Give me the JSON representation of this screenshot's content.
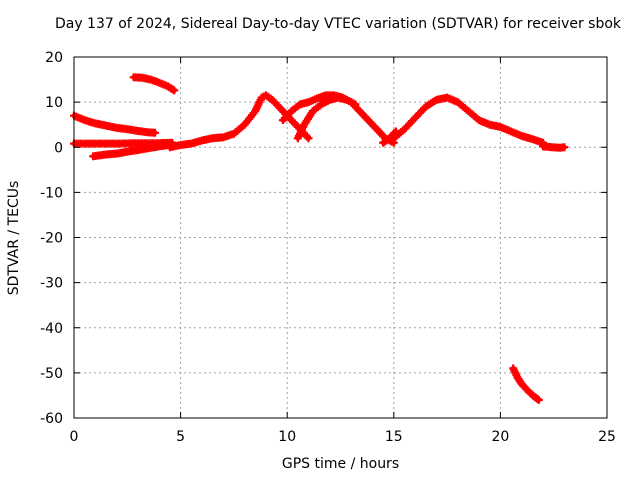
{
  "chart_data": {
    "type": "scatter",
    "title": "Day 137 of 2024, Sidereal Day-to-day VTEC variation (SDTVAR) for receiver sbok",
    "xlabel": "GPS time / hours",
    "ylabel": "SDTVAR / TECUs",
    "xlim": [
      0,
      25
    ],
    "ylim": [
      -60,
      20
    ],
    "xticks": [
      0,
      5,
      10,
      15,
      20,
      25
    ],
    "yticks": [
      -60,
      -50,
      -40,
      -30,
      -20,
      -10,
      0,
      10,
      20
    ],
    "grid": true,
    "marker": "+",
    "color": "#ff0000",
    "series": [
      {
        "name": "arc-1",
        "x": [
          0.0,
          0.5,
          1.0,
          1.5,
          2.0,
          2.5,
          3.0,
          3.5,
          3.8
        ],
        "y": [
          7.0,
          6.0,
          5.3,
          4.8,
          4.3,
          4.0,
          3.6,
          3.3,
          3.2
        ]
      },
      {
        "name": "arc-2",
        "x": [
          2.8,
          3.2,
          3.6,
          4.0,
          4.4,
          4.7
        ],
        "y": [
          15.5,
          15.4,
          15.0,
          14.3,
          13.5,
          12.6
        ]
      },
      {
        "name": "arc-3",
        "x": [
          0.0,
          1.0,
          2.0,
          3.0,
          4.0,
          4.6
        ],
        "y": [
          0.8,
          0.8,
          0.8,
          0.9,
          0.9,
          1.0
        ]
      },
      {
        "name": "arc-4",
        "x": [
          0.9,
          1.5,
          2.0,
          2.5,
          3.0,
          3.5,
          4.0,
          4.6
        ],
        "y": [
          -2.0,
          -1.6,
          -1.4,
          -1.0,
          -0.6,
          -0.2,
          0.2,
          0.6
        ]
      },
      {
        "name": "arc-5",
        "x": [
          4.5,
          5.0,
          5.5,
          6.0,
          6.5,
          7.0,
          7.5,
          8.0,
          8.5,
          8.8,
          9.0,
          9.3,
          9.6,
          10.0,
          10.5,
          11.0
        ],
        "y": [
          0.0,
          0.5,
          0.8,
          1.5,
          2.0,
          2.2,
          3.0,
          5.0,
          8.0,
          11.0,
          11.5,
          10.5,
          9.0,
          7.0,
          4.5,
          2.0
        ]
      },
      {
        "name": "arc-6",
        "x": [
          9.8,
          10.2,
          10.6,
          11.0,
          11.4,
          11.8,
          12.2,
          12.6,
          13.0,
          13.4,
          13.8,
          14.2,
          14.6,
          15.0
        ],
        "y": [
          6.0,
          8.0,
          9.5,
          10.0,
          10.8,
          11.5,
          11.5,
          11.0,
          10.0,
          8.0,
          6.0,
          4.0,
          2.0,
          1.0
        ]
      },
      {
        "name": "arc-7",
        "x": [
          10.5,
          10.8,
          11.2,
          11.6,
          12.0,
          12.4,
          12.8,
          13.2
        ],
        "y": [
          2.0,
          5.0,
          8.0,
          9.5,
          10.5,
          11.0,
          10.5,
          9.5
        ]
      },
      {
        "name": "arc-8",
        "x": [
          15.0,
          15.5,
          16.0,
          16.5,
          17.0,
          17.5,
          18.0,
          18.5,
          19.0,
          19.5,
          20.0,
          20.5,
          21.0,
          21.5,
          22.0
        ],
        "y": [
          2.0,
          4.0,
          6.5,
          9.0,
          10.5,
          11.0,
          10.0,
          8.0,
          6.0,
          5.0,
          4.5,
          3.5,
          2.5,
          1.8,
          1.0
        ]
      },
      {
        "name": "arc-9",
        "x": [
          14.5,
          14.8,
          15.1
        ],
        "y": [
          1.0,
          2.0,
          3.5
        ]
      },
      {
        "name": "arc-10",
        "x": [
          22.0,
          22.4,
          22.8,
          23.0
        ],
        "y": [
          0.2,
          0.0,
          -0.1,
          0.0
        ]
      },
      {
        "name": "arc-11",
        "x": [
          20.6,
          20.8,
          21.0,
          21.2,
          21.4,
          21.6,
          21.8
        ],
        "y": [
          -49.0,
          -51.0,
          -52.5,
          -53.5,
          -54.5,
          -55.3,
          -56.0
        ]
      }
    ]
  }
}
